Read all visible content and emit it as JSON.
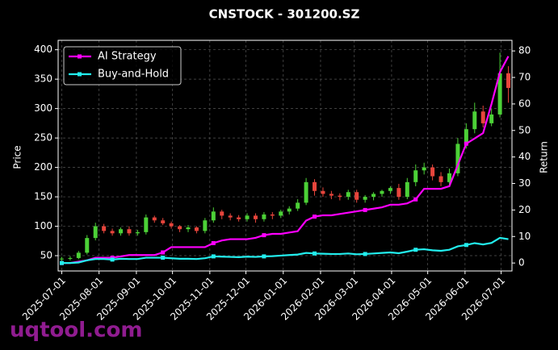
{
  "chart_data": {
    "type": "candlestick",
    "title": "CNSTOCK - 301200.SZ",
    "ylabel": "Price",
    "y2label": "Return",
    "x": [
      "2025-07-01",
      "2025-07-08",
      "2025-07-15",
      "2025-07-22",
      "2025-07-29",
      "2025-08-05",
      "2025-08-12",
      "2025-08-19",
      "2025-08-26",
      "2025-09-02",
      "2025-09-09",
      "2025-09-16",
      "2025-09-23",
      "2025-09-30",
      "2025-10-07",
      "2025-10-14",
      "2025-10-21",
      "2025-10-28",
      "2025-11-04",
      "2025-11-11",
      "2025-11-18",
      "2025-11-25",
      "2025-12-02",
      "2025-12-09",
      "2025-12-16",
      "2025-12-23",
      "2025-12-30",
      "2026-01-06",
      "2026-01-13",
      "2026-01-20",
      "2026-01-27",
      "2026-02-03",
      "2026-02-10",
      "2026-02-17",
      "2026-02-24",
      "2026-03-03",
      "2026-03-10",
      "2026-03-17",
      "2026-03-24",
      "2026-03-31",
      "2026-04-07",
      "2026-04-14",
      "2026-04-21",
      "2026-04-28",
      "2026-05-05",
      "2026-05-12",
      "2026-05-19",
      "2026-05-26",
      "2026-06-02",
      "2026-06-09",
      "2026-06-16",
      "2026-06-23",
      "2026-06-30",
      "2026-07-07"
    ],
    "open": [
      44,
      45,
      46,
      55,
      80,
      100,
      92,
      88,
      95,
      88,
      90,
      115,
      110,
      105,
      100,
      95,
      98,
      92,
      110,
      125,
      118,
      115,
      112,
      118,
      112,
      120,
      118,
      125,
      130,
      140,
      175,
      160,
      155,
      152,
      150,
      158,
      145,
      150,
      155,
      160,
      165,
      150,
      175,
      195,
      200,
      185,
      175,
      190,
      240,
      265,
      295,
      275,
      290,
      360
    ],
    "high": [
      48,
      49,
      58,
      85,
      106,
      104,
      96,
      98,
      100,
      94,
      120,
      118,
      114,
      108,
      102,
      102,
      100,
      114,
      132,
      128,
      122,
      119,
      122,
      122,
      124,
      124,
      128,
      134,
      146,
      182,
      180,
      166,
      160,
      156,
      162,
      162,
      153,
      158,
      162,
      168,
      172,
      182,
      205,
      208,
      205,
      192,
      198,
      250,
      275,
      310,
      305,
      300,
      395,
      372
    ],
    "low": [
      40,
      42,
      44,
      52,
      76,
      88,
      84,
      84,
      84,
      84,
      86,
      106,
      102,
      96,
      90,
      90,
      88,
      88,
      106,
      112,
      110,
      108,
      108,
      106,
      108,
      112,
      114,
      120,
      126,
      136,
      152,
      150,
      146,
      144,
      145,
      140,
      140,
      144,
      150,
      155,
      145,
      146,
      168,
      188,
      178,
      168,
      170,
      185,
      232,
      258,
      268,
      270,
      285,
      310
    ],
    "close": [
      45,
      46,
      55,
      80,
      100,
      92,
      88,
      95,
      88,
      90,
      115,
      110,
      105,
      100,
      95,
      98,
      92,
      110,
      125,
      118,
      115,
      112,
      118,
      112,
      120,
      118,
      125,
      130,
      140,
      175,
      160,
      155,
      152,
      150,
      158,
      145,
      150,
      155,
      160,
      165,
      150,
      175,
      195,
      200,
      185,
      175,
      190,
      240,
      265,
      295,
      275,
      290,
      360,
      335
    ],
    "up_color": "#4cd137",
    "down_color": "#e8453c",
    "series": [
      {
        "name": "AI Strategy",
        "color": "#ff00ff",
        "axis": "y2",
        "values": [
          0,
          0,
          0.5,
          1,
          2,
          2,
          2,
          2.5,
          3,
          3,
          3,
          3,
          4,
          6,
          6,
          6,
          6,
          6,
          7.5,
          8.5,
          9,
          9,
          9,
          9.5,
          10.5,
          11,
          11,
          11.5,
          12,
          16,
          17.5,
          18,
          18,
          18.5,
          19,
          19.5,
          20,
          20.5,
          21,
          22,
          22,
          22.5,
          24,
          28,
          28,
          28,
          29,
          37,
          45,
          47,
          49,
          60,
          72,
          78
        ]
      },
      {
        "name": "Buy-and-Hold",
        "color": "#22eeee",
        "axis": "y2",
        "values": [
          0,
          0,
          0.2,
          1,
          1.5,
          1.5,
          1.3,
          1.6,
          1.5,
          1.5,
          2,
          2,
          2,
          1.8,
          1.6,
          1.6,
          1.5,
          1.8,
          2.5,
          2.4,
          2.3,
          2.2,
          2.4,
          2.3,
          2.5,
          2.6,
          2.8,
          3,
          3.2,
          3.8,
          3.6,
          3.5,
          3.4,
          3.4,
          3.6,
          3.3,
          3.4,
          3.6,
          3.8,
          4,
          3.7,
          4.3,
          5,
          5.2,
          4.8,
          4.6,
          5,
          6.3,
          6.8,
          7.5,
          7,
          7.6,
          9.5,
          9
        ]
      }
    ],
    "xlim": [
      "2025-06-28",
      "2026-07-10"
    ],
    "xticks": [
      "2025-07-01",
      "2025-08-01",
      "2025-09-01",
      "2025-10-01",
      "2025-11-01",
      "2025-12-01",
      "2026-01-01",
      "2026-02-01",
      "2026-03-01",
      "2026-04-01",
      "2026-05-01",
      "2026-06-01",
      "2026-07-01"
    ],
    "ylim": [
      24,
      416
    ],
    "yticks": [
      50,
      100,
      150,
      200,
      250,
      300,
      350,
      400
    ],
    "y2lim": [
      -3,
      84
    ],
    "y2ticks": [
      0,
      10,
      20,
      30,
      40,
      50,
      60,
      70,
      80
    ],
    "grid": true,
    "legend": "upper left"
  },
  "watermark": "uqtool.com"
}
